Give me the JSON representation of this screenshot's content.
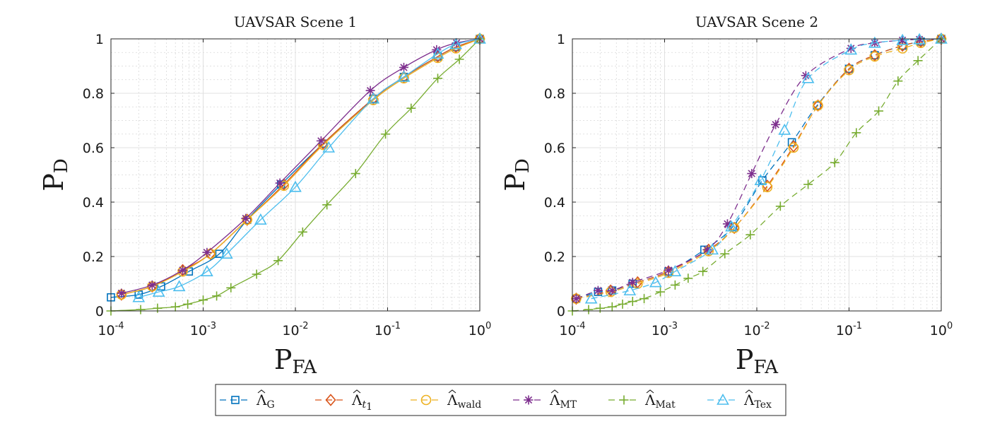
{
  "legend": {
    "placement": "bottom-center",
    "entries": [
      {
        "series": "G",
        "symbol": "Λ",
        "sub": "G",
        "sub_italic": false
      },
      {
        "series": "t1",
        "symbol": "Λ",
        "sub": "t",
        "sub2": "1",
        "sub_italic": true
      },
      {
        "series": "wald",
        "symbol": "Λ",
        "sub": "wald",
        "sub_italic": false
      },
      {
        "series": "MT",
        "symbol": "Λ",
        "sub": "MT",
        "sub_italic": false
      },
      {
        "series": "Mat",
        "symbol": "Λ",
        "sub": "Mat",
        "sub_italic": false
      },
      {
        "series": "Tex",
        "symbol": "Λ",
        "sub": "Tex",
        "sub_italic": false
      }
    ]
  },
  "styles": {
    "G": {
      "color": "#0072bd",
      "marker": "square"
    },
    "t1": {
      "color": "#d95319",
      "marker": "diamond"
    },
    "wald": {
      "color": "#edb120",
      "marker": "circle"
    },
    "MT": {
      "color": "#7e2f8e",
      "marker": "asterisk"
    },
    "Mat": {
      "color": "#77ac30",
      "marker": "plus"
    },
    "Tex": {
      "color": "#4dbeee",
      "marker": "triangle"
    }
  },
  "chart_data": [
    {
      "type": "line",
      "title": "UAVSAR Scene 1",
      "xlabel": "P",
      "xlabel_sub": "FA",
      "ylabel": "P",
      "ylabel_sub": "D",
      "xscale": "log",
      "xlim": [
        0.0001,
        1
      ],
      "ylim": [
        0,
        1
      ],
      "grid": true,
      "minor_grid": true,
      "line_style": "solid",
      "yticks": [
        "0",
        "0.2",
        "0.4",
        "0.6",
        "0.8",
        "1"
      ],
      "xticks": [
        {
          "base": "10",
          "exp": "-4"
        },
        {
          "base": "10",
          "exp": "-3"
        },
        {
          "base": "10",
          "exp": "-2"
        },
        {
          "base": "10",
          "exp": "-1"
        },
        {
          "base": "10",
          "exp": "0"
        }
      ],
      "series": [
        {
          "key": "G",
          "x": [
            0.0001,
            0.0002,
            0.00035,
            0.0007,
            0.0015,
            0.003,
            0.007,
            0.02,
            0.07,
            0.15,
            0.35,
            0.55,
            1
          ],
          "y": [
            0.05,
            0.06,
            0.09,
            0.145,
            0.21,
            0.335,
            0.465,
            0.615,
            0.78,
            0.86,
            0.935,
            0.97,
            1
          ]
        },
        {
          "key": "t1",
          "x": [
            0.00013,
            0.00028,
            0.0006,
            0.0012,
            0.003,
            0.0075,
            0.02,
            0.07,
            0.15,
            0.35,
            0.55,
            1
          ],
          "y": [
            0.06,
            0.09,
            0.15,
            0.21,
            0.335,
            0.465,
            0.615,
            0.78,
            0.86,
            0.935,
            0.97,
            1
          ]
        },
        {
          "key": "wald",
          "x": [
            0.00013,
            0.00028,
            0.0006,
            0.0012,
            0.003,
            0.0075,
            0.02,
            0.07,
            0.15,
            0.35,
            0.55,
            1
          ],
          "y": [
            0.06,
            0.09,
            0.145,
            0.21,
            0.335,
            0.46,
            0.61,
            0.775,
            0.855,
            0.93,
            0.965,
            1
          ]
        },
        {
          "key": "MT",
          "x": [
            0.00013,
            0.00028,
            0.0006,
            0.0011,
            0.0029,
            0.0068,
            0.019,
            0.065,
            0.15,
            0.34,
            0.56,
            1
          ],
          "y": [
            0.065,
            0.095,
            0.15,
            0.215,
            0.34,
            0.47,
            0.625,
            0.81,
            0.895,
            0.96,
            0.985,
            1
          ]
        },
        {
          "key": "Mat",
          "x": [
            0.0001,
            0.00021,
            0.00032,
            0.0005,
            0.00068,
            0.001,
            0.0014,
            0.002,
            0.0038,
            0.0065,
            0.012,
            0.022,
            0.045,
            0.095,
            0.18,
            0.35,
            0.6,
            1
          ],
          "y": [
            0.0,
            0.005,
            0.01,
            0.015,
            0.025,
            0.04,
            0.055,
            0.085,
            0.135,
            0.185,
            0.29,
            0.39,
            0.505,
            0.65,
            0.745,
            0.855,
            0.925,
            1
          ]
        },
        {
          "key": "Tex",
          "x": [
            0.0002,
            0.00033,
            0.00055,
            0.0011,
            0.0018,
            0.0042,
            0.01,
            0.023,
            0.07,
            0.15,
            0.35,
            0.55,
            1
          ],
          "y": [
            0.05,
            0.07,
            0.09,
            0.145,
            0.21,
            0.335,
            0.455,
            0.6,
            0.78,
            0.86,
            0.945,
            0.98,
            1
          ]
        }
      ]
    },
    {
      "type": "line",
      "title": "UAVSAR Scene 2",
      "xlabel": "P",
      "xlabel_sub": "FA",
      "ylabel": "P",
      "ylabel_sub": "D",
      "xscale": "log",
      "xlim": [
        0.0001,
        1
      ],
      "ylim": [
        0,
        1
      ],
      "grid": true,
      "minor_grid": true,
      "line_style": "dashed",
      "yticks": [
        "0",
        "0.2",
        "0.4",
        "0.6",
        "0.8",
        "1"
      ],
      "xticks": [
        {
          "base": "10",
          "exp": "-4"
        },
        {
          "base": "10",
          "exp": "-3"
        },
        {
          "base": "10",
          "exp": "-2"
        },
        {
          "base": "10",
          "exp": "-1"
        },
        {
          "base": "10",
          "exp": "0"
        }
      ],
      "series": [
        {
          "key": "G",
          "x": [
            0.00011,
            0.00019,
            0.00027,
            0.00045,
            0.0011,
            0.0027,
            0.0055,
            0.0115,
            0.024,
            0.045,
            0.1,
            0.19,
            0.38,
            0.6,
            1
          ],
          "y": [
            0.045,
            0.07,
            0.075,
            0.1,
            0.145,
            0.225,
            0.31,
            0.48,
            0.62,
            0.755,
            0.89,
            0.94,
            0.975,
            0.99,
            1
          ]
        },
        {
          "key": "t1",
          "x": [
            0.00011,
            0.00026,
            0.00051,
            0.0011,
            0.003,
            0.0057,
            0.013,
            0.025,
            0.046,
            0.1,
            0.19,
            0.38,
            0.6,
            1
          ],
          "y": [
            0.045,
            0.075,
            0.105,
            0.145,
            0.225,
            0.305,
            0.46,
            0.605,
            0.755,
            0.89,
            0.94,
            0.975,
            0.99,
            1
          ]
        },
        {
          "key": "wald",
          "x": [
            0.00011,
            0.00026,
            0.00051,
            0.0011,
            0.003,
            0.0057,
            0.013,
            0.025,
            0.046,
            0.1,
            0.19,
            0.38,
            0.6,
            1
          ],
          "y": [
            0.045,
            0.07,
            0.1,
            0.14,
            0.22,
            0.305,
            0.455,
            0.6,
            0.755,
            0.885,
            0.935,
            0.965,
            0.985,
            1
          ]
        },
        {
          "key": "MT",
          "x": [
            0.00011,
            0.00019,
            0.00027,
            0.00045,
            0.0011,
            0.0029,
            0.0048,
            0.0088,
            0.016,
            0.034,
            0.105,
            0.19,
            0.38,
            0.58,
            1
          ],
          "y": [
            0.045,
            0.075,
            0.075,
            0.105,
            0.15,
            0.225,
            0.32,
            0.505,
            0.685,
            0.865,
            0.965,
            0.985,
            0.995,
            0.998,
            1
          ]
        },
        {
          "key": "Mat",
          "x": [
            0.0001,
            0.00015,
            0.0002,
            0.00027,
            0.00035,
            0.00045,
            0.0006,
            0.0009,
            0.0013,
            0.0018,
            0.0026,
            0.0045,
            0.0085,
            0.018,
            0.036,
            0.07,
            0.12,
            0.21,
            0.34,
            0.56,
            1
          ],
          "y": [
            0.0,
            0.005,
            0.01,
            0.015,
            0.025,
            0.035,
            0.045,
            0.07,
            0.095,
            0.12,
            0.145,
            0.21,
            0.28,
            0.385,
            0.465,
            0.545,
            0.655,
            0.735,
            0.845,
            0.92,
            1
          ]
        },
        {
          "key": "Tex",
          "x": [
            0.00016,
            0.00042,
            0.0008,
            0.0013,
            0.0033,
            0.0053,
            0.011,
            0.02,
            0.036,
            0.105,
            0.19,
            0.38,
            0.58,
            1
          ],
          "y": [
            0.045,
            0.075,
            0.105,
            0.145,
            0.225,
            0.31,
            0.48,
            0.665,
            0.855,
            0.96,
            0.985,
            0.995,
            0.998,
            1
          ]
        }
      ]
    }
  ]
}
